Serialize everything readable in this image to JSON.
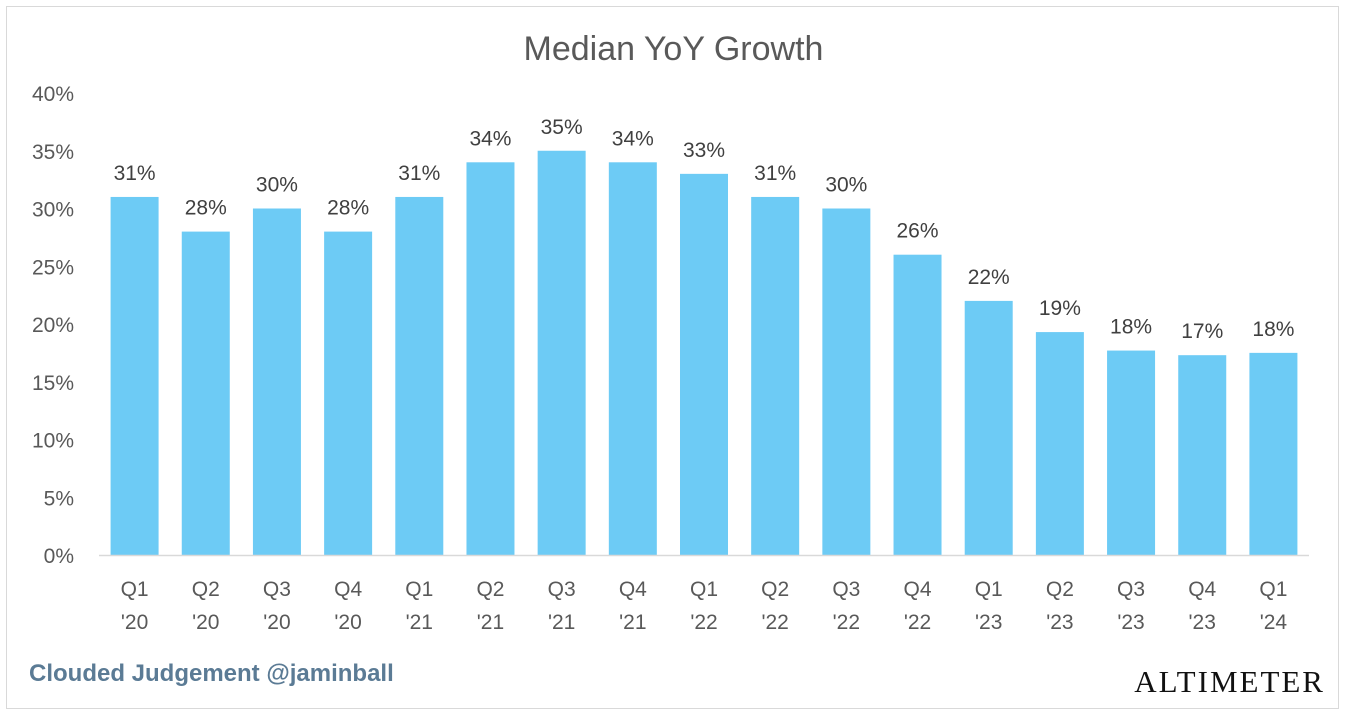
{
  "chart_data": {
    "type": "bar",
    "title": "Median YoY Growth",
    "categories": [
      [
        "Q1",
        "'20"
      ],
      [
        "Q2",
        "'20"
      ],
      [
        "Q3",
        "'20"
      ],
      [
        "Q4",
        "'20"
      ],
      [
        "Q1",
        "'21"
      ],
      [
        "Q2",
        "'21"
      ],
      [
        "Q3",
        "'21"
      ],
      [
        "Q4",
        "'21"
      ],
      [
        "Q1",
        "'22"
      ],
      [
        "Q2",
        "'22"
      ],
      [
        "Q3",
        "'22"
      ],
      [
        "Q4",
        "'22"
      ],
      [
        "Q1",
        "'23"
      ],
      [
        "Q2",
        "'23"
      ],
      [
        "Q3",
        "'23"
      ],
      [
        "Q4",
        "'23"
      ],
      [
        "Q1",
        "'24"
      ]
    ],
    "values": [
      0.31,
      0.28,
      0.3,
      0.28,
      0.31,
      0.34,
      0.35,
      0.34,
      0.33,
      0.31,
      0.3,
      0.26,
      0.22,
      0.193,
      0.177,
      0.173,
      0.175
    ],
    "data_labels": [
      "31%",
      "28%",
      "30%",
      "28%",
      "31%",
      "34%",
      "35%",
      "34%",
      "33%",
      "31%",
      "30%",
      "26%",
      "22%",
      "19%",
      "18%",
      "17%",
      "18%"
    ],
    "yticks": [
      "0%",
      "5%",
      "10%",
      "15%",
      "20%",
      "25%",
      "30%",
      "35%",
      "40%"
    ],
    "ylim": [
      0,
      0.4
    ],
    "grid": false,
    "bar_color": "#6dcbf5"
  },
  "footer": {
    "attribution": "Clouded Judgement @jaminball",
    "brand": "ALTIMETER"
  }
}
